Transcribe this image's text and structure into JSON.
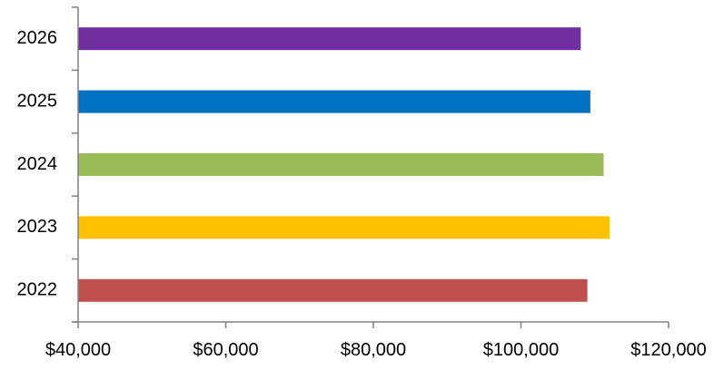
{
  "chart_data": {
    "type": "bar",
    "orientation": "horizontal",
    "title": "",
    "xlabel": "",
    "ylabel": "",
    "categories": [
      "2022",
      "2023",
      "2024",
      "2025",
      "2026"
    ],
    "values": [
      109000,
      112000,
      111200,
      109400,
      108100
    ],
    "colors": [
      "#c0504d",
      "#ffc000",
      "#9bbb59",
      "#0070c0",
      "#7030a0"
    ],
    "xlim": [
      40000,
      120000
    ],
    "xticks": [
      40000,
      60000,
      80000,
      100000,
      120000
    ],
    "xtick_labels": [
      "$40,000",
      "$60,000",
      "$80,000",
      "$100,000",
      "$120,000"
    ],
    "grid": false,
    "legend": "none"
  }
}
